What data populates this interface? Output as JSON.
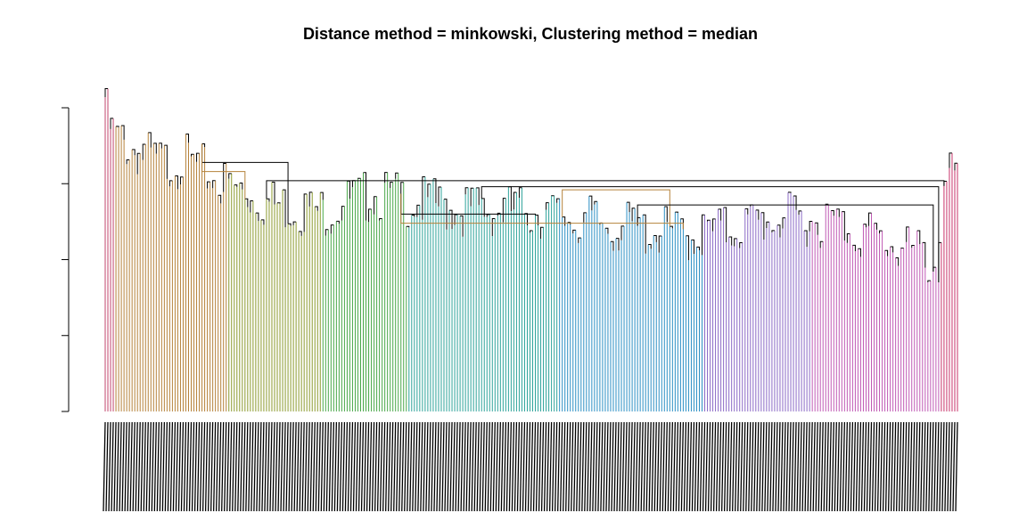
{
  "chart_data": {
    "type": "dendrogram",
    "title": "Distance method = minkowski, Clustering method = median",
    "xlabel": "",
    "ylabel": "",
    "ylim": [
      0,
      1
    ],
    "ytick_values": [
      0,
      0.25,
      0.5,
      0.75,
      1.0
    ],
    "show_ytick_labels": false,
    "grid": false,
    "legend": "none",
    "leaf_count": 318,
    "leaf_labels_legible": false,
    "leaf_base": 0,
    "palette": [
      {
        "name": "cluster-1",
        "color": "#c2466e",
        "leaves": [
          0,
          3
        ]
      },
      {
        "name": "cluster-2",
        "color": "#b5823a",
        "leaves": [
          4,
          45
        ]
      },
      {
        "name": "cluster-3",
        "color": "#8b9a2e",
        "leaves": [
          46,
          80
        ]
      },
      {
        "name": "cluster-4",
        "color": "#4aa84a",
        "leaves": [
          81,
          112
        ]
      },
      {
        "name": "cluster-5",
        "color": "#2ea39a",
        "leaves": [
          113,
          168
        ]
      },
      {
        "name": "cluster-6",
        "color": "#2b8fc4",
        "leaves": [
          169,
          222
        ]
      },
      {
        "name": "cluster-7",
        "color": "#8b6ac6",
        "leaves": [
          223,
          262
        ]
      },
      {
        "name": "cluster-8",
        "color": "#c05ab5",
        "leaves": [
          263,
          310
        ]
      },
      {
        "name": "cluster-9",
        "color": "#c8336a",
        "leaves": [
          311,
          317
        ]
      }
    ],
    "leaf_heights_profile": [
      {
        "leaf": 0,
        "height": 1.08
      },
      {
        "leaf": 2,
        "height": 0.97
      },
      {
        "leaf": 6,
        "height": 0.93
      },
      {
        "leaf": 12,
        "height": 0.9
      },
      {
        "leaf": 20,
        "height": 0.86
      },
      {
        "leaf": 30,
        "height": 0.87
      },
      {
        "leaf": 45,
        "height": 0.79
      },
      {
        "leaf": 60,
        "height": 0.73
      },
      {
        "leaf": 80,
        "height": 0.7
      },
      {
        "leaf": 100,
        "height": 0.76
      },
      {
        "leaf": 130,
        "height": 0.71
      },
      {
        "leaf": 160,
        "height": 0.7
      },
      {
        "leaf": 190,
        "height": 0.65
      },
      {
        "leaf": 220,
        "height": 0.62
      },
      {
        "leaf": 250,
        "height": 0.68
      },
      {
        "leaf": 270,
        "height": 0.67
      },
      {
        "leaf": 300,
        "height": 0.57
      },
      {
        "leaf": 310,
        "height": 0.52
      },
      {
        "leaf": 312,
        "height": 0.75
      },
      {
        "leaf": 317,
        "height": 0.85
      }
    ],
    "major_merges": [
      {
        "height": 0.82,
        "from_leaf": 36,
        "to_leaf": 68
      },
      {
        "height": 0.79,
        "from_leaf": 36,
        "to_leaf": 52
      },
      {
        "height": 0.76,
        "from_leaf": 60,
        "to_leaf": 312
      },
      {
        "height": 0.74,
        "from_leaf": 140,
        "to_leaf": 310
      },
      {
        "height": 0.73,
        "from_leaf": 170,
        "to_leaf": 210
      },
      {
        "height": 0.68,
        "from_leaf": 198,
        "to_leaf": 308
      },
      {
        "height": 0.65,
        "from_leaf": 110,
        "to_leaf": 160
      },
      {
        "height": 0.62,
        "from_leaf": 110,
        "to_leaf": 215
      }
    ]
  }
}
